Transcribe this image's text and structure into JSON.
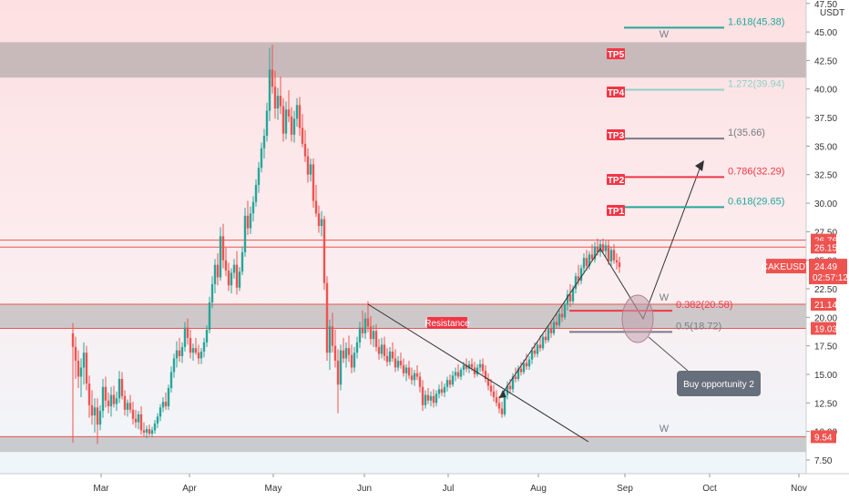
{
  "chart_data": {
    "type": "candlestick",
    "symbol": "CAKEUSDT",
    "currency": "USDT",
    "ylim": [
      6.3,
      47.8
    ],
    "y_ticks": [
      "7.50",
      "10.00",
      "12.50",
      "15.00",
      "17.50",
      "20.00",
      "22.50",
      "25.00",
      "27.50",
      "30.00",
      "32.50",
      "35.00",
      "37.50",
      "40.00",
      "42.50",
      "45.00",
      "47.50"
    ],
    "x_ticks": [
      "Mar",
      "Apr",
      "May",
      "Jun",
      "Jul",
      "Aug",
      "Sep",
      "Oct",
      "Nov"
    ],
    "last_price": {
      "label": "CAKEUSDT",
      "value": "24.49",
      "countdown": "02:57:12",
      "color": "#ef5350"
    },
    "price_tags": [
      {
        "value": "26.76",
        "color": "#ef5350"
      },
      {
        "value": "26.15",
        "color": "#ef5350"
      },
      {
        "value": "21.14",
        "color": "#ef5350"
      },
      {
        "value": "19.03",
        "color": "#ef5350"
      },
      {
        "value": "9.54",
        "color": "#ef5350"
      }
    ],
    "zones": [
      {
        "from": 41.0,
        "to": 44.1,
        "color": "#888888"
      },
      {
        "from": 19.03,
        "to": 21.14,
        "color": "#999999"
      },
      {
        "from": 8.2,
        "to": 9.54,
        "color": "#999999"
      }
    ],
    "targets": [
      {
        "tag": "TP5"
      },
      {
        "tag": "TP4"
      },
      {
        "tag": "TP3"
      },
      {
        "tag": "TP2"
      },
      {
        "tag": "TP1"
      }
    ],
    "fib_levels": [
      {
        "label": "1.618(45.38)",
        "value": 45.38,
        "color": "#26a69a"
      },
      {
        "label": "1.272(39.94)",
        "value": 39.94,
        "color": "#8fd0c9"
      },
      {
        "label": "1(35.66)",
        "value": 35.66,
        "color": "#787b86"
      },
      {
        "label": "0.786(32.29)",
        "value": 32.29,
        "color": "#f23645"
      },
      {
        "label": "0.618(29.65)",
        "value": 29.65,
        "color": "#26a69a"
      },
      {
        "label": "0.382(20.58)",
        "value": 20.58,
        "color": "#f23645"
      },
      {
        "label": "0.5(18.72)",
        "value": 18.72,
        "color": "#787b86"
      }
    ],
    "annotations": {
      "resistance_label": "Resistance",
      "callout": "Buy opportunity 2",
      "wave_labels": [
        "W",
        "W",
        "W"
      ]
    },
    "colors": {
      "up": "#26a69a",
      "down": "#ef5350",
      "accent": "#f23645"
    }
  }
}
